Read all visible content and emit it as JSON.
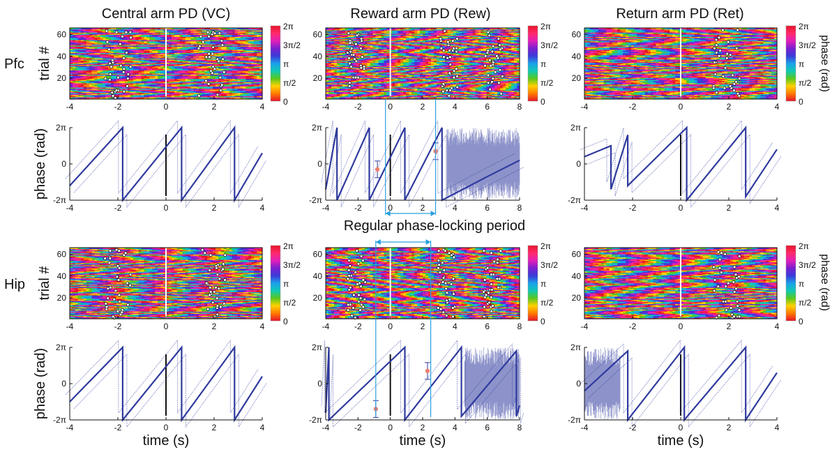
{
  "figure": {
    "callout": "Regular phase-locking period",
    "rows": [
      "Pfc",
      "Hip"
    ],
    "columns": [
      "Central arm PD (VC)",
      "Reward arm PD (Rew)",
      "Return arm PD (Ret)"
    ],
    "colorbar": {
      "label": "phase (rad)",
      "ticks": [
        "2π",
        "3π/2",
        "π",
        "π/2",
        "0"
      ],
      "colors": [
        "#e8142a",
        "#ff7a00",
        "#ffd200",
        "#58c81e",
        "#10c9b5",
        "#1aa0ea",
        "#3b3bd8",
        "#7a1fd0",
        "#e21fb8",
        "#ff2a6a",
        "#e8142a"
      ]
    },
    "line_color": "#2f3a9e",
    "marker_color": "#f08070",
    "callout_color": "#2aa0e0"
  },
  "chart_data": [
    {
      "id": "pfc-vc-raster",
      "type": "heatmap",
      "row": "Pfc",
      "column": "Central arm PD (VC)",
      "xlabel": "",
      "ylabel": "trial #",
      "xlim": [
        -4,
        4
      ],
      "ylim": [
        1,
        66
      ],
      "xticks": [
        "-4",
        "-2",
        "0",
        "2",
        "4"
      ],
      "yticks": [
        "20",
        "40",
        "60"
      ],
      "event_onset_s": 0,
      "cluster_centers_s": [
        -2.0,
        1.9
      ]
    },
    {
      "id": "pfc-rew-raster",
      "type": "heatmap",
      "row": "Pfc",
      "column": "Reward arm PD (Rew)",
      "xlabel": "",
      "ylabel": "",
      "xlim": [
        -4,
        8
      ],
      "ylim": [
        1,
        66
      ],
      "xticks": [
        "-4",
        "-2",
        "0",
        "2",
        "4",
        "6",
        "8"
      ],
      "yticks": [
        "20",
        "40",
        "60"
      ],
      "event_onset_s": 0,
      "cluster_centers_s": [
        -2.1,
        3.6,
        6.4
      ]
    },
    {
      "id": "pfc-ret-raster",
      "type": "heatmap",
      "row": "Pfc",
      "column": "Return arm PD (Ret)",
      "xlabel": "",
      "ylabel": "",
      "xlim": [
        -4,
        4
      ],
      "ylim": [
        1,
        66
      ],
      "xticks": [
        "-4",
        "-2",
        "0",
        "2",
        "4"
      ],
      "yticks": [
        "20",
        "40",
        "60"
      ],
      "event_onset_s": 0,
      "cluster_centers_s": [
        1.9
      ]
    },
    {
      "id": "pfc-vc-phase",
      "type": "line",
      "row": "Pfc",
      "column": "Central arm PD (VC)",
      "xlabel": "",
      "ylabel": "phase (rad)",
      "xlim": [
        -4,
        4
      ],
      "ylim": [
        "-2π",
        "2π"
      ],
      "xticks": [
        "-4",
        "-2",
        "0",
        "2",
        "4"
      ],
      "yticks": [
        "2π",
        "0",
        "-2π"
      ],
      "wraps_s": [
        -1.8,
        0.65,
        2.85
      ],
      "x": [
        -4,
        -1.8,
        -1.8,
        0.65,
        0.65,
        2.85,
        2.85,
        4
      ],
      "y": [
        -0.6,
        1.0,
        -1.0,
        1.0,
        -1.0,
        1.0,
        -1.0,
        0.3
      ]
    },
    {
      "id": "pfc-rew-phase",
      "type": "line",
      "row": "Pfc",
      "column": "Reward arm PD (Rew)",
      "xlabel": "",
      "ylabel": "",
      "xlim": [
        -4,
        8
      ],
      "ylim": [
        "-2π",
        "2π"
      ],
      "xticks": [
        "-4",
        "-2",
        "0",
        "2",
        "4",
        "6",
        "8"
      ],
      "yticks": [
        "2π",
        "0",
        "-2π"
      ],
      "wraps_s": [
        -3.3,
        -1.3,
        0.9,
        3.2
      ],
      "noisy_after_s": 3.5,
      "markers": [
        {
          "x": -0.8,
          "y": -0.15
        },
        {
          "x": 2.8,
          "y": 0.35
        }
      ],
      "x": [
        -4,
        -3.3,
        -3.3,
        -1.3,
        -1.3,
        0.9,
        0.9,
        3.2,
        3.2,
        6.0,
        8.0
      ],
      "y": [
        -0.7,
        1.0,
        -1.0,
        1.0,
        -1.0,
        1.0,
        -1.0,
        1.0,
        -1.0,
        -0.35,
        0.1
      ]
    },
    {
      "id": "pfc-ret-phase",
      "type": "line",
      "row": "Pfc",
      "column": "Return arm PD (Ret)",
      "xlabel": "",
      "ylabel": "",
      "xlim": [
        -4,
        4
      ],
      "ylim": [
        "-2π",
        "2π"
      ],
      "xticks": [
        "-4",
        "-2",
        "0",
        "2",
        "4"
      ],
      "yticks": [
        "2π",
        "0",
        "-2π"
      ],
      "wraps_s": [
        -2.9,
        -2.2,
        0.25,
        2.7
      ],
      "x": [
        -4,
        -2.9,
        -2.9,
        -2.2,
        -2.2,
        0.25,
        0.25,
        2.7,
        2.7,
        4
      ],
      "y": [
        0.2,
        0.5,
        -0.7,
        0.8,
        -0.6,
        1.0,
        -1.0,
        1.0,
        -0.9,
        0.4
      ]
    },
    {
      "id": "hip-vc-raster",
      "type": "heatmap",
      "row": "Hip",
      "column": "Central arm PD (VC)",
      "xlabel": "",
      "ylabel": "trial #",
      "xlim": [
        -4,
        4
      ],
      "ylim": [
        1,
        66
      ],
      "xticks": [
        "-4",
        "-2",
        "0",
        "2",
        "4"
      ],
      "yticks": [
        "20",
        "40",
        "60"
      ],
      "event_onset_s": 0,
      "cluster_centers_s": [
        -2.0,
        2.0
      ]
    },
    {
      "id": "hip-rew-raster",
      "type": "heatmap",
      "row": "Hip",
      "column": "Reward arm PD (Rew)",
      "xlabel": "",
      "ylabel": "",
      "xlim": [
        -4,
        8
      ],
      "ylim": [
        1,
        66
      ],
      "xticks": [
        "-4",
        "-2",
        "0",
        "2",
        "4",
        "6",
        "8"
      ],
      "yticks": [
        "20",
        "40",
        "60"
      ],
      "event_onset_s": 0,
      "cluster_centers_s": [
        -2.1,
        3.5,
        6.3
      ]
    },
    {
      "id": "hip-ret-raster",
      "type": "heatmap",
      "row": "Hip",
      "column": "Return arm PD (Ret)",
      "xlabel": "",
      "ylabel": "",
      "xlim": [
        -4,
        4
      ],
      "ylim": [
        1,
        66
      ],
      "xticks": [
        "-4",
        "-2",
        "0",
        "2",
        "4"
      ],
      "yticks": [
        "20",
        "40",
        "60"
      ],
      "event_onset_s": 0,
      "cluster_centers_s": [
        1.9
      ]
    },
    {
      "id": "hip-vc-phase",
      "type": "line",
      "row": "Hip",
      "column": "Central arm PD (VC)",
      "xlabel": "time (s)",
      "ylabel": "phase (rad)",
      "xlim": [
        -4,
        4
      ],
      "ylim": [
        "-2π",
        "2π"
      ],
      "xticks": [
        "-4",
        "-2",
        "0",
        "2",
        "4"
      ],
      "yticks": [
        "2π",
        "0",
        "-2π"
      ],
      "wraps_s": [
        -1.8,
        0.65,
        2.85
      ],
      "x": [
        -4,
        -1.8,
        -1.8,
        0.65,
        0.65,
        2.85,
        2.85,
        4
      ],
      "y": [
        -0.5,
        1.0,
        -1.0,
        1.0,
        -1.0,
        1.0,
        -1.0,
        0.2
      ]
    },
    {
      "id": "hip-rew-phase",
      "type": "line",
      "row": "Hip",
      "column": "Reward arm PD (Rew)",
      "xlabel": "time (s)",
      "ylabel": "",
      "xlim": [
        -4,
        8
      ],
      "ylim": [
        "-2π",
        "2π"
      ],
      "xticks": [
        "-4",
        "-2",
        "0",
        "2",
        "4",
        "6",
        "8"
      ],
      "yticks": [
        "2π",
        "0",
        "-2π"
      ],
      "wraps_s": [
        -3.8,
        0.9,
        4.4,
        7.8
      ],
      "noisy_after_s": 4.6,
      "markers": [
        {
          "x": -0.9,
          "y": -0.7
        },
        {
          "x": 2.3,
          "y": 0.35
        }
      ],
      "x": [
        -4,
        -3.8,
        -3.8,
        0.9,
        0.9,
        4.4,
        4.4,
        7.8,
        7.8,
        8
      ],
      "y": [
        -0.8,
        1.0,
        -1.0,
        1.0,
        -1.0,
        1.0,
        -0.9,
        0.9,
        -0.9,
        -0.6
      ]
    },
    {
      "id": "hip-ret-phase",
      "type": "line",
      "row": "Hip",
      "column": "Return arm PD (Ret)",
      "xlabel": "time (s)",
      "ylabel": "",
      "xlim": [
        -4,
        4
      ],
      "ylim": [
        "-2π",
        "2π"
      ],
      "xticks": [
        "-4",
        "-2",
        "0",
        "2",
        "4"
      ],
      "yticks": [
        "2π",
        "0",
        "-2π"
      ],
      "wraps_s": [
        -2.2,
        0.15,
        2.7
      ],
      "noisy_before_s": -2.5,
      "x": [
        -4,
        -2.2,
        -2.2,
        0.15,
        0.15,
        2.7,
        2.7,
        4
      ],
      "y": [
        -0.2,
        0.9,
        -1.0,
        1.0,
        -1.0,
        1.0,
        -1.0,
        0.3
      ]
    }
  ]
}
